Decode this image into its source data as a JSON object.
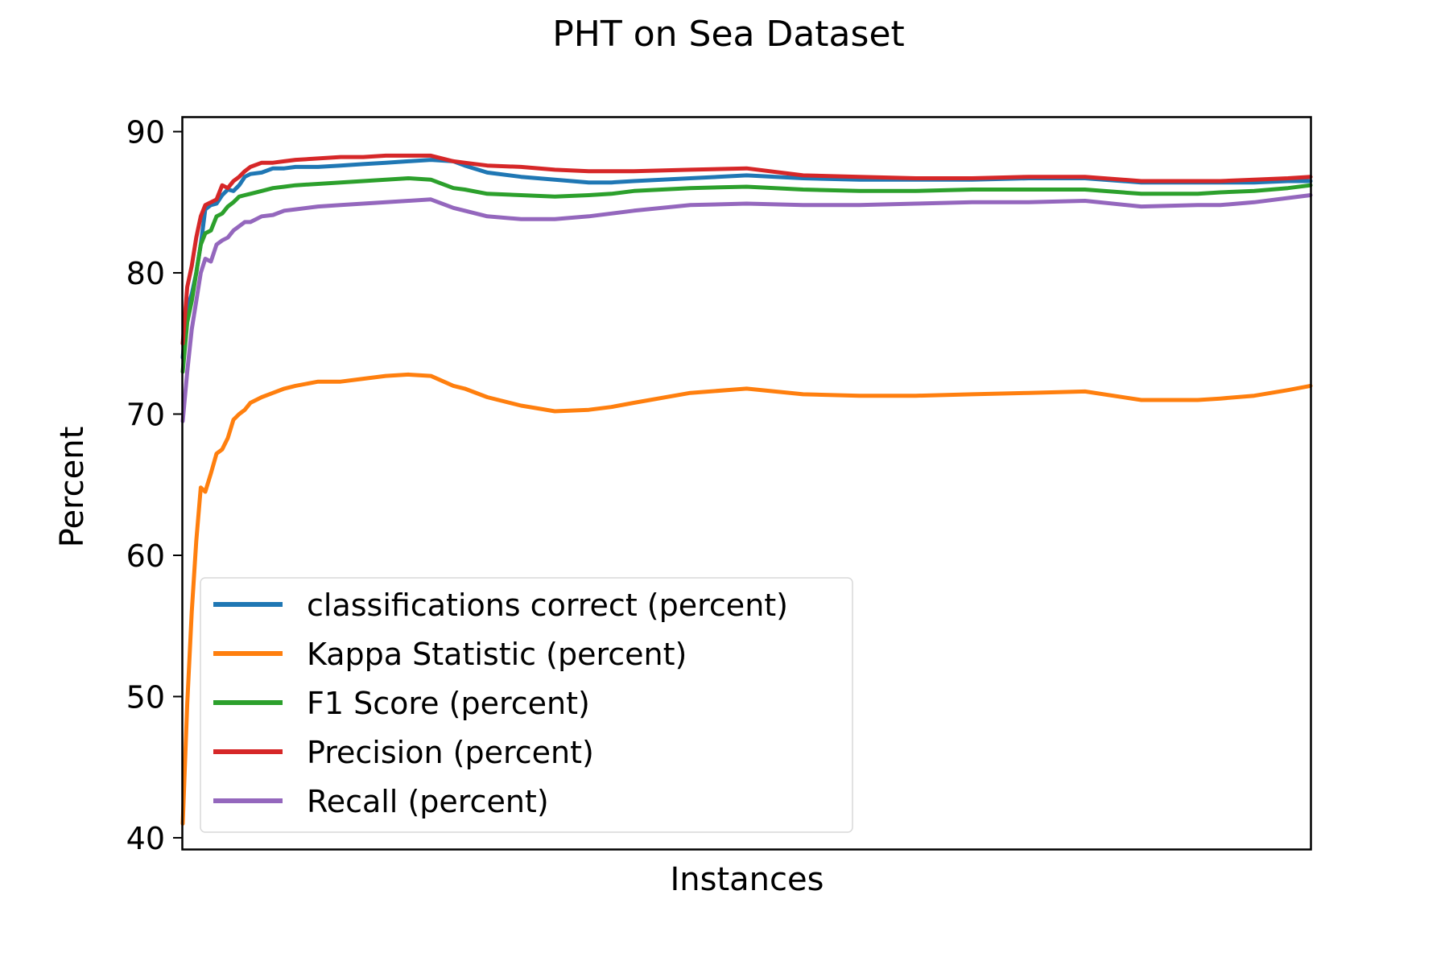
{
  "chart_data": {
    "type": "line",
    "title": "PHT on Sea Dataset",
    "xlabel": "Instances",
    "ylabel": "Percent",
    "ylim": [
      39.2,
      91
    ],
    "xlim": [
      0,
      1
    ],
    "yticks": [
      40,
      50,
      60,
      70,
      80,
      90
    ],
    "ytick_labels": [
      "40",
      "50",
      "60",
      "70",
      "80",
      "90"
    ],
    "xticks_shown": false,
    "grid": false,
    "legend_position": "lower-left",
    "series": [
      {
        "name": "classifications correct (percent)",
        "color": "#1f77b4",
        "x": [
          0,
          0.004,
          0.008,
          0.012,
          0.016,
          0.02,
          0.025,
          0.03,
          0.035,
          0.04,
          0.045,
          0.05,
          0.055,
          0.06,
          0.07,
          0.08,
          0.09,
          0.1,
          0.12,
          0.14,
          0.16,
          0.18,
          0.2,
          0.22,
          0.24,
          0.25,
          0.27,
          0.3,
          0.33,
          0.36,
          0.38,
          0.4,
          0.45,
          0.5,
          0.55,
          0.6,
          0.65,
          0.7,
          0.75,
          0.8,
          0.85,
          0.9,
          0.92,
          0.95,
          0.98,
          1.0
        ],
        "y": [
          74.0,
          77.5,
          78.5,
          80.0,
          82.0,
          84.5,
          84.8,
          84.9,
          85.5,
          85.9,
          85.8,
          86.2,
          86.8,
          87.0,
          87.1,
          87.4,
          87.4,
          87.5,
          87.5,
          87.6,
          87.7,
          87.8,
          87.9,
          88.0,
          87.9,
          87.6,
          87.1,
          86.8,
          86.6,
          86.4,
          86.4,
          86.5,
          86.7,
          86.9,
          86.7,
          86.6,
          86.6,
          86.6,
          86.7,
          86.7,
          86.4,
          86.4,
          86.4,
          86.4,
          86.5,
          86.5
        ]
      },
      {
        "name": "Kappa Statistic (percent)",
        "color": "#ff7f0e",
        "x": [
          0,
          0.004,
          0.008,
          0.012,
          0.016,
          0.02,
          0.025,
          0.03,
          0.035,
          0.04,
          0.045,
          0.05,
          0.055,
          0.06,
          0.07,
          0.08,
          0.09,
          0.1,
          0.12,
          0.14,
          0.16,
          0.18,
          0.2,
          0.22,
          0.24,
          0.25,
          0.27,
          0.3,
          0.33,
          0.36,
          0.38,
          0.4,
          0.45,
          0.5,
          0.55,
          0.6,
          0.65,
          0.7,
          0.75,
          0.8,
          0.85,
          0.9,
          0.92,
          0.95,
          0.98,
          1.0
        ],
        "y": [
          41.0,
          49.5,
          56.0,
          61.0,
          64.8,
          64.5,
          65.8,
          67.2,
          67.5,
          68.3,
          69.6,
          70.0,
          70.3,
          70.8,
          71.2,
          71.5,
          71.8,
          72.0,
          72.3,
          72.3,
          72.5,
          72.7,
          72.8,
          72.7,
          72.0,
          71.8,
          71.2,
          70.6,
          70.2,
          70.3,
          70.5,
          70.8,
          71.5,
          71.8,
          71.4,
          71.3,
          71.3,
          71.4,
          71.5,
          71.6,
          71.0,
          71.0,
          71.1,
          71.3,
          71.7,
          72.0
        ]
      },
      {
        "name": "F1 Score (percent)",
        "color": "#2ca02c",
        "x": [
          0,
          0.004,
          0.008,
          0.012,
          0.016,
          0.02,
          0.025,
          0.03,
          0.035,
          0.04,
          0.045,
          0.05,
          0.055,
          0.06,
          0.07,
          0.08,
          0.09,
          0.1,
          0.12,
          0.14,
          0.16,
          0.18,
          0.2,
          0.22,
          0.24,
          0.25,
          0.27,
          0.3,
          0.33,
          0.36,
          0.38,
          0.4,
          0.45,
          0.5,
          0.55,
          0.6,
          0.65,
          0.7,
          0.75,
          0.8,
          0.85,
          0.9,
          0.92,
          0.95,
          0.98,
          1.0
        ],
        "y": [
          73.0,
          76.5,
          78.0,
          80.0,
          82.0,
          82.8,
          83.0,
          84.0,
          84.2,
          84.7,
          85.0,
          85.4,
          85.5,
          85.6,
          85.8,
          86.0,
          86.1,
          86.2,
          86.3,
          86.4,
          86.5,
          86.6,
          86.7,
          86.6,
          86.0,
          85.9,
          85.6,
          85.5,
          85.4,
          85.5,
          85.6,
          85.8,
          86.0,
          86.1,
          85.9,
          85.8,
          85.8,
          85.9,
          85.9,
          85.9,
          85.6,
          85.6,
          85.7,
          85.8,
          86.0,
          86.2
        ]
      },
      {
        "name": "Precision (percent)",
        "color": "#d62728",
        "x": [
          0,
          0.004,
          0.008,
          0.012,
          0.016,
          0.02,
          0.025,
          0.03,
          0.035,
          0.04,
          0.045,
          0.05,
          0.055,
          0.06,
          0.07,
          0.08,
          0.09,
          0.1,
          0.12,
          0.14,
          0.16,
          0.18,
          0.2,
          0.22,
          0.24,
          0.25,
          0.27,
          0.3,
          0.33,
          0.36,
          0.38,
          0.4,
          0.45,
          0.5,
          0.55,
          0.6,
          0.65,
          0.7,
          0.75,
          0.8,
          0.85,
          0.9,
          0.92,
          0.95,
          0.98,
          1.0
        ],
        "y": [
          75.0,
          79.0,
          80.5,
          82.5,
          84.0,
          84.8,
          85.0,
          85.2,
          86.2,
          86.0,
          86.5,
          86.8,
          87.2,
          87.5,
          87.8,
          87.8,
          87.9,
          88.0,
          88.1,
          88.2,
          88.2,
          88.3,
          88.3,
          88.3,
          87.9,
          87.8,
          87.6,
          87.5,
          87.3,
          87.2,
          87.2,
          87.2,
          87.3,
          87.4,
          86.9,
          86.8,
          86.7,
          86.7,
          86.8,
          86.8,
          86.5,
          86.5,
          86.5,
          86.6,
          86.7,
          86.8
        ]
      },
      {
        "name": "Recall (percent)",
        "color": "#9467bd",
        "x": [
          0,
          0.004,
          0.008,
          0.012,
          0.016,
          0.02,
          0.025,
          0.03,
          0.035,
          0.04,
          0.045,
          0.05,
          0.055,
          0.06,
          0.07,
          0.08,
          0.09,
          0.1,
          0.12,
          0.14,
          0.16,
          0.18,
          0.2,
          0.22,
          0.24,
          0.25,
          0.27,
          0.3,
          0.33,
          0.36,
          0.38,
          0.4,
          0.45,
          0.5,
          0.55,
          0.6,
          0.65,
          0.7,
          0.75,
          0.8,
          0.85,
          0.9,
          0.92,
          0.95,
          0.98,
          1.0
        ],
        "y": [
          69.5,
          73.0,
          76.0,
          78.0,
          80.0,
          81.0,
          80.8,
          82.0,
          82.3,
          82.5,
          83.0,
          83.3,
          83.6,
          83.6,
          84.0,
          84.1,
          84.4,
          84.5,
          84.7,
          84.8,
          84.9,
          85.0,
          85.1,
          85.2,
          84.6,
          84.4,
          84.0,
          83.8,
          83.8,
          84.0,
          84.2,
          84.4,
          84.8,
          84.9,
          84.8,
          84.8,
          84.9,
          85.0,
          85.0,
          85.1,
          84.7,
          84.8,
          84.8,
          85.0,
          85.3,
          85.5
        ]
      }
    ]
  }
}
